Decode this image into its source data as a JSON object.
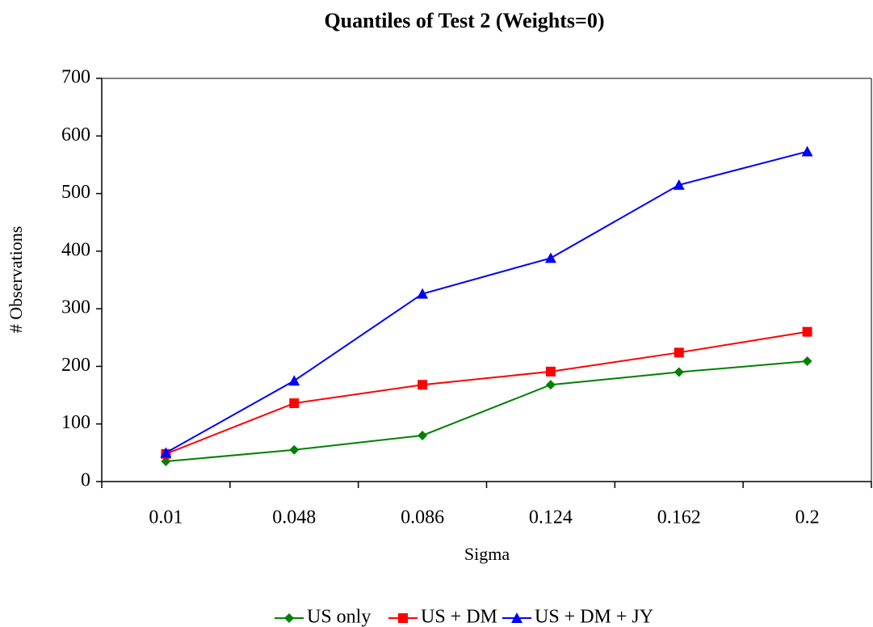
{
  "chart_data": {
    "type": "line",
    "title": "Quantiles of Test 2 (Weights=0)",
    "x_label": "Sigma",
    "y_label": "# Observations",
    "categories": [
      "0.01",
      "0.048",
      "0.086",
      "0.124",
      "0.162",
      "0.2"
    ],
    "series": [
      {
        "name": "US only",
        "color": "#008000",
        "marker": "diamond",
        "values": [
          35,
          55,
          80,
          168,
          190,
          209
        ]
      },
      {
        "name": "US + DM",
        "color": "#ff0000",
        "marker": "square",
        "values": [
          48,
          136,
          168,
          191,
          224,
          260
        ]
      },
      {
        "name": "US + DM + JY",
        "color": "#0000ff",
        "marker": "triangle",
        "values": [
          50,
          175,
          326,
          388,
          515,
          573
        ]
      }
    ],
    "ylim": [
      0,
      700
    ],
    "yticks": [
      0,
      100,
      200,
      300,
      400,
      500,
      600,
      700
    ],
    "grid": false,
    "legend": "bottom"
  }
}
